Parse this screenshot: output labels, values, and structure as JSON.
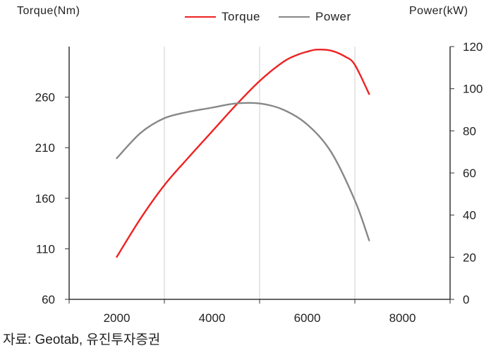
{
  "chart_data": {
    "type": "line",
    "left_axis_title": "Torque(Nm)",
    "right_axis_title": "Power(kW)",
    "xlim": [
      1000,
      9000
    ],
    "x_ticks": [
      2000,
      4000,
      6000,
      8000
    ],
    "x_tick_labels": [
      "2000",
      "4000",
      "6000",
      "8000"
    ],
    "ylim_left": [
      60,
      310
    ],
    "y_ticks_left": [
      60,
      110,
      160,
      210,
      260
    ],
    "y_tick_labels_left": [
      "60",
      "110",
      "160",
      "210",
      "260"
    ],
    "ylim_right": [
      0,
      120
    ],
    "y_ticks_right": [
      0,
      20,
      40,
      60,
      80,
      100,
      120
    ],
    "y_tick_labels_right": [
      "0",
      "20",
      "40",
      "60",
      "80",
      "100",
      "120"
    ],
    "grid": "vertical",
    "legend": "top-center",
    "series": [
      {
        "name": "Torque",
        "axis": "left",
        "color": "#ee2222",
        "x": [
          2000,
          2500,
          3000,
          3500,
          4000,
          4500,
          5000,
          5500,
          5800,
          6000,
          6200,
          6500,
          6800,
          7000,
          7300
        ],
        "y": [
          102,
          140,
          173,
          200,
          226,
          252,
          276,
          295,
          302,
          305,
          307,
          306,
          300,
          292,
          263
        ]
      },
      {
        "name": "Power",
        "axis": "right",
        "color": "#888888",
        "x": [
          2000,
          2500,
          3000,
          3500,
          4000,
          4500,
          5000,
          5500,
          6000,
          6500,
          7000,
          7300
        ],
        "y": [
          67,
          79,
          86,
          89,
          91,
          93,
          93,
          90,
          83,
          70,
          47,
          28
        ]
      }
    ]
  },
  "source": "자료: Geotab, 유진투자증권"
}
